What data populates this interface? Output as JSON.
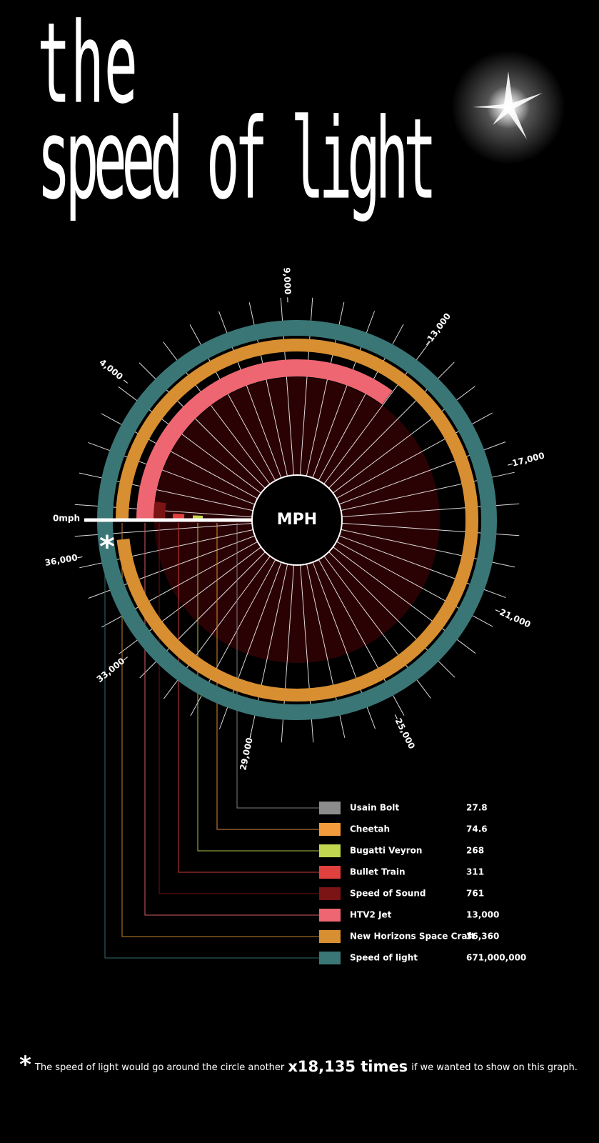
{
  "chart_data": {
    "type": "radial_bar",
    "title": [
      "the",
      "speed of light"
    ],
    "center_label": "MPH",
    "categories": [
      "Usain Bolt",
      "Cheetah",
      "Bugatti Veyron",
      "Bullet Train",
      "Speed of Sound",
      "HTV2 Jet",
      "New Horizons Space Craft",
      "Speed of light"
    ],
    "values": [
      27.8,
      74.6,
      268,
      311,
      761,
      13000,
      36360,
      671000000
    ],
    "value_labels": [
      "27.8",
      "74.6",
      "268",
      "311",
      "761",
      "13,000",
      "36,360",
      "671,000,000"
    ],
    "colors": [
      "#8c8c8c",
      "#f39a3c",
      "#c3d650",
      "#e0413f",
      "#7b1414",
      "#ee6672",
      "#d88f31",
      "#3b7676"
    ],
    "rlim": [
      0,
      37000
    ],
    "ticks": [
      {
        "value": 0,
        "label": "0mph"
      },
      {
        "value": 4000,
        "label": "4,000"
      },
      {
        "value": 9000,
        "label": "9,000"
      },
      {
        "value": 13000,
        "label": "13,000"
      },
      {
        "value": 17000,
        "label": "17,000"
      },
      {
        "value": 21000,
        "label": "21,000"
      },
      {
        "value": 25000,
        "label": "25,000"
      },
      {
        "value": 29000,
        "label": "29,000"
      },
      {
        "value": 33000,
        "label": "33,000"
      },
      {
        "value": 36000,
        "label": "36,000"
      }
    ],
    "footnote": {
      "marker": "*",
      "text_before": "The speed of light would go around the circle another",
      "emphasis": "x18,135 times",
      "text_after": "if we wanted to show on this graph."
    }
  }
}
